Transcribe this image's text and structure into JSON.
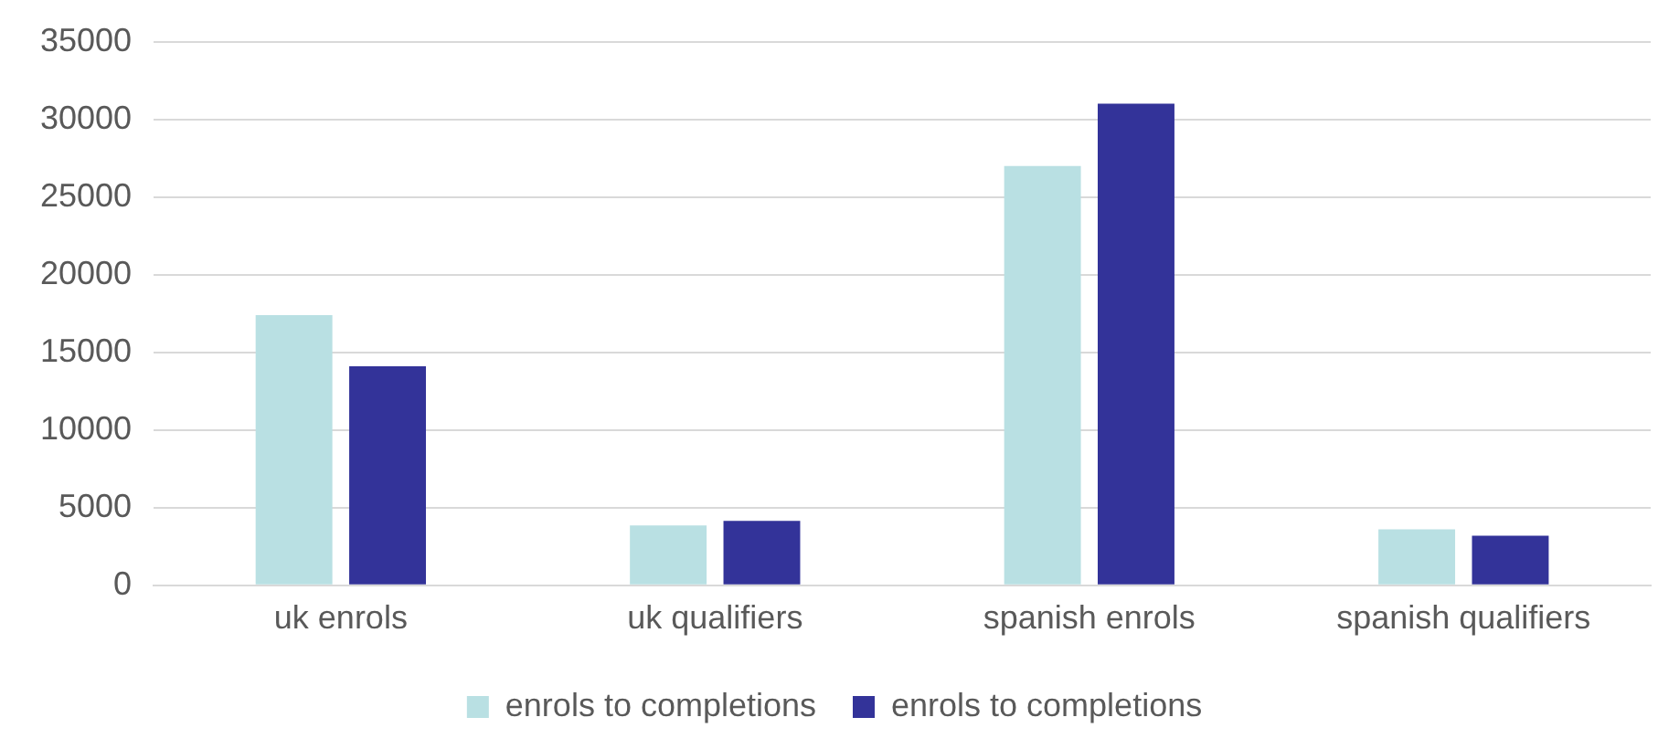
{
  "chart_data": {
    "type": "bar",
    "categories": [
      "uk enrols",
      "uk qualifiers",
      "spanish enrols",
      "spanish qualifiers"
    ],
    "series": [
      {
        "name": "enrols to completions",
        "color": "#b9e0e3",
        "values": [
          17400,
          3850,
          27000,
          3600
        ]
      },
      {
        "name": "enrols to completions",
        "color": "#333399",
        "values": [
          14100,
          4150,
          31000,
          3200
        ]
      }
    ],
    "ylim": [
      0,
      35000
    ],
    "yticks": [
      0,
      5000,
      10000,
      15000,
      20000,
      25000,
      30000,
      35000
    ],
    "grid": "y",
    "legend": "bottom"
  }
}
